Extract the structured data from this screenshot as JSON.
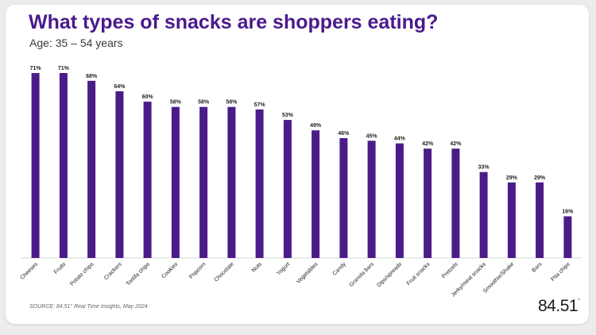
{
  "title": "What types of snacks are shoppers eating?",
  "subtitle": "Age: 35 – 54 years",
  "source": "SOURCE: 84.51° Real Time Insights, May 2024",
  "logo": {
    "main": "84.51",
    "mark": "°"
  },
  "colors": {
    "bar": "#4b1c88",
    "title": "#4a1a8c",
    "label": "#222222"
  },
  "chart_data": {
    "type": "bar",
    "title": "What types of snacks are shoppers eating?",
    "subtitle": "Age: 35 – 54 years",
    "xlabel": "",
    "ylabel": "",
    "ylim": [
      0,
      75
    ],
    "grid": false,
    "value_suffix": "%",
    "categories": [
      "Cheeses",
      "Fruits",
      "Potato chips",
      "Crackers",
      "Tortilla chips",
      "Cookies",
      "Popcorn",
      "Chocolate",
      "Nuts",
      "Yogurt",
      "Vegetables",
      "Candy",
      "Granola bars",
      "Dips/spreads",
      "Fruit snacks",
      "Pretzels",
      "Jerky/meat snacks",
      "Smoothie/Shake",
      "Bars",
      "Pita chips"
    ],
    "values": [
      71,
      71,
      68,
      64,
      60,
      58,
      58,
      58,
      57,
      53,
      49,
      46,
      45,
      44,
      42,
      42,
      33,
      29,
      29,
      16
    ]
  }
}
